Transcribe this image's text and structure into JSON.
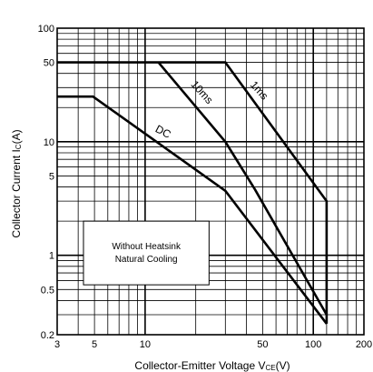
{
  "chart_data": {
    "type": "line",
    "title": "",
    "xlabel_main": "Collector-Emitter Voltage V",
    "xlabel_sub": "CE",
    "xlabel_unit": "(V)",
    "ylabel_main": "Collector Current I",
    "ylabel_sub": "C",
    "ylabel_unit": "(A)",
    "x_scale": "log",
    "y_scale": "log",
    "xlim": [
      3,
      200
    ],
    "ylim": [
      0.2,
      100
    ],
    "x_ticks": [
      {
        "value": 3,
        "label": "3"
      },
      {
        "value": 5,
        "label": "5"
      },
      {
        "value": 10,
        "label": "10"
      },
      {
        "value": 50,
        "label": "50"
      },
      {
        "value": 100,
        "label": "100"
      },
      {
        "value": 200,
        "label": "200"
      }
    ],
    "y_ticks": [
      {
        "value": 0.2,
        "label": "0.2"
      },
      {
        "value": 0.5,
        "label": "0.5"
      },
      {
        "value": 1,
        "label": "1"
      },
      {
        "value": 5,
        "label": "5"
      },
      {
        "value": 10,
        "label": "10"
      },
      {
        "value": 50,
        "label": "50"
      },
      {
        "value": 100,
        "label": "100"
      }
    ],
    "x_grid": [
      3,
      4,
      5,
      6,
      7,
      8,
      9,
      10,
      20,
      30,
      40,
      50,
      60,
      70,
      80,
      90,
      100,
      120,
      140,
      160,
      180,
      200
    ],
    "y_grid": [
      0.2,
      0.3,
      0.4,
      0.5,
      0.6,
      0.7,
      0.8,
      0.9,
      1,
      2,
      3,
      4,
      5,
      6,
      7,
      8,
      9,
      10,
      20,
      30,
      40,
      50,
      60,
      70,
      80,
      90,
      100
    ],
    "grid": true,
    "series": [
      {
        "name": "DC",
        "x": [
          3,
          4.9,
          30,
          120
        ],
        "y": [
          25,
          25,
          3.7,
          0.25
        ]
      },
      {
        "name": "10ms",
        "x": [
          12,
          30,
          45,
          120
        ],
        "y": [
          50,
          10,
          3.8,
          0.3
        ]
      },
      {
        "name": "1ms",
        "x": [
          3,
          30,
          120,
          120
        ],
        "y": [
          50,
          50,
          3,
          0.25
        ]
      }
    ],
    "series_labels": [
      {
        "text": "DC",
        "x": 12.5,
        "y": 11.5,
        "angle": 28
      },
      {
        "text": "10ms",
        "x": 21,
        "y": 26,
        "angle": 48
      },
      {
        "text": "1ms",
        "x": 46,
        "y": 27,
        "angle": 48
      }
    ],
    "annotation": {
      "lines": [
        "Without Heatsink",
        "Natural Cooling"
      ],
      "box_x": [
        4.3,
        24
      ],
      "box_y": [
        0.55,
        2
      ]
    }
  }
}
